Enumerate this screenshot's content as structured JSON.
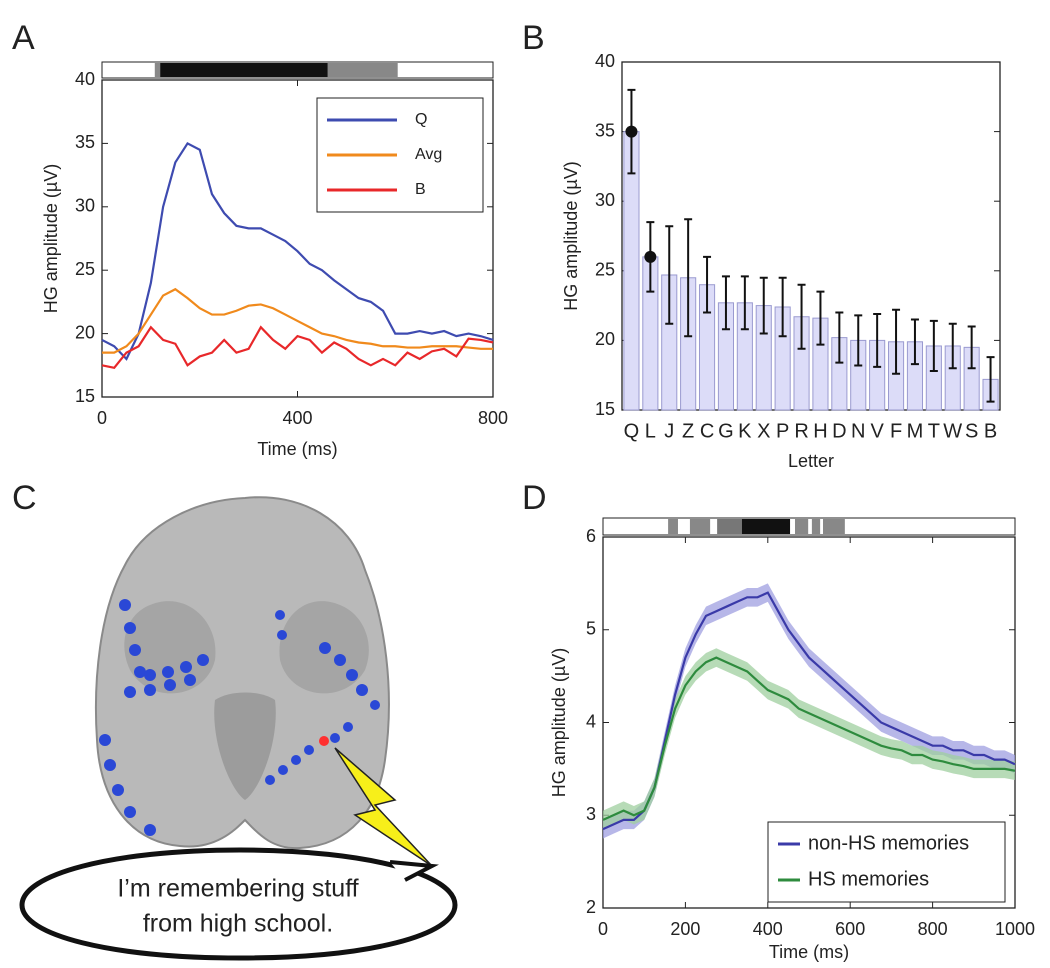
{
  "panel_labels": [
    "A",
    "B",
    "C",
    "D"
  ],
  "illustration": {
    "speech_lines": [
      "I’m remembering stuff",
      "from high school."
    ]
  },
  "chart_data": [
    {
      "type": "line",
      "xlabel": "Time (ms)",
      "ylabel": "HG amplitude (µV)",
      "xlim": [
        0,
        800
      ],
      "ylim": [
        15,
        40
      ],
      "xticks": [
        0,
        400,
        800
      ],
      "yticks": [
        15,
        20,
        25,
        30,
        35,
        40
      ],
      "legend": "upper right",
      "bands": [
        {
          "start": 108,
          "end": 119,
          "color": "#888888"
        },
        {
          "start": 119,
          "end": 462,
          "color": "#111111"
        },
        {
          "start": 462,
          "end": 605,
          "color": "#888888"
        }
      ],
      "x": [
        0,
        25,
        50,
        75,
        100,
        125,
        150,
        175,
        200,
        225,
        250,
        275,
        300,
        325,
        350,
        375,
        400,
        425,
        450,
        475,
        500,
        525,
        550,
        575,
        600,
        625,
        650,
        675,
        700,
        725,
        750,
        775,
        800
      ],
      "series": [
        {
          "name": "Q",
          "color": "#3e4bb0",
          "values": [
            19.5,
            19.0,
            18.0,
            20,
            24,
            30,
            33.5,
            35,
            34.5,
            31,
            29.5,
            28.5,
            28.3,
            28.3,
            27.8,
            27.3,
            26.5,
            25.5,
            25,
            24.2,
            23.5,
            22.8,
            22.5,
            21.8,
            20,
            20,
            20.2,
            20,
            20.2,
            19.8,
            20,
            19.8,
            19.5
          ]
        },
        {
          "name": "Avg",
          "color": "#f08a1c",
          "values": [
            18.5,
            18.5,
            19,
            20,
            21.5,
            23,
            23.5,
            22.8,
            22,
            21.5,
            21.5,
            21.8,
            22.2,
            22.3,
            22,
            21.5,
            21,
            20.5,
            20,
            19.8,
            19.5,
            19.3,
            19.2,
            19,
            19,
            18.9,
            18.9,
            19,
            19,
            19,
            18.9,
            18.8,
            18.8
          ]
        },
        {
          "name": "B",
          "color": "#e8282a",
          "values": [
            17.5,
            17.3,
            18.5,
            19,
            20.5,
            19.5,
            19.2,
            17.5,
            18.2,
            18.5,
            19.5,
            18.5,
            18.8,
            20.5,
            19.5,
            18.8,
            19.8,
            19.5,
            18.5,
            19.3,
            18.8,
            18,
            17.5,
            18,
            17.5,
            18.5,
            18,
            18.6,
            18.8,
            18.2,
            19.6,
            19.5,
            19.3
          ]
        }
      ]
    },
    {
      "type": "bar",
      "xlabel": "Letter",
      "ylabel": "HG amplitude (µV)",
      "ylim": [
        15,
        40
      ],
      "yticks": [
        15,
        20,
        25,
        30,
        35,
        40
      ],
      "color": "#dcdcf8",
      "edge_color": "#9a9ad0",
      "categories": [
        "Q",
        "L",
        "J",
        "Z",
        "C",
        "G",
        "K",
        "X",
        "P",
        "R",
        "H",
        "D",
        "N",
        "V",
        "F",
        "M",
        "T",
        "W",
        "S",
        "B"
      ],
      "values": [
        35,
        26,
        24.7,
        24.5,
        24,
        22.7,
        22.7,
        22.5,
        22.4,
        21.7,
        21.6,
        20.2,
        20,
        20,
        19.9,
        19.9,
        19.6,
        19.6,
        19.5,
        17.2
      ],
      "errors": [
        3,
        2.5,
        3.5,
        4.2,
        2,
        1.9,
        1.9,
        2,
        2.1,
        2.3,
        1.9,
        1.8,
        1.8,
        1.9,
        2.3,
        1.6,
        1.8,
        1.6,
        1.5,
        1.6
      ],
      "marker_indices": [
        0,
        1
      ]
    },
    {
      "type": "line",
      "xlabel": "Time (ms)",
      "ylabel": "HG amplitude (µV)",
      "xlim": [
        0,
        1000
      ],
      "ylim": [
        2,
        6
      ],
      "xticks": [
        0,
        200,
        400,
        600,
        800,
        1000
      ],
      "yticks": [
        2,
        3,
        4,
        5,
        6
      ],
      "legend": "lower right",
      "bands": [
        {
          "start": 158,
          "end": 182,
          "color": "#888888"
        },
        {
          "start": 211,
          "end": 260,
          "color": "#888888"
        },
        {
          "start": 277,
          "end": 337,
          "color": "#777777"
        },
        {
          "start": 337,
          "end": 454,
          "color": "#111111"
        },
        {
          "start": 466,
          "end": 498,
          "color": "#888888"
        },
        {
          "start": 507,
          "end": 527,
          "color": "#888888"
        },
        {
          "start": 534,
          "end": 587,
          "color": "#888888"
        }
      ],
      "x": [
        0,
        25,
        50,
        75,
        100,
        125,
        150,
        175,
        200,
        225,
        250,
        275,
        300,
        325,
        350,
        375,
        400,
        425,
        450,
        475,
        500,
        525,
        550,
        575,
        600,
        625,
        650,
        675,
        700,
        725,
        750,
        775,
        800,
        825,
        850,
        875,
        900,
        925,
        950,
        975,
        1000
      ],
      "series": [
        {
          "name": "non-HS memories",
          "color": "#3a3aa8",
          "band_color": "#9f9fe0",
          "error": 0.1,
          "values": [
            2.85,
            2.9,
            2.95,
            2.95,
            3.05,
            3.3,
            3.8,
            4.3,
            4.7,
            4.95,
            5.15,
            5.2,
            5.25,
            5.3,
            5.35,
            5.35,
            5.4,
            5.2,
            5.0,
            4.85,
            4.7,
            4.6,
            4.5,
            4.4,
            4.3,
            4.2,
            4.1,
            4.0,
            3.95,
            3.9,
            3.85,
            3.8,
            3.75,
            3.75,
            3.7,
            3.7,
            3.65,
            3.65,
            3.6,
            3.6,
            3.55
          ]
        },
        {
          "name": "HS memories",
          "color": "#2e8b3e",
          "band_color": "#9fcf9f",
          "error": 0.1,
          "values": [
            2.95,
            3.0,
            3.05,
            3.0,
            3.05,
            3.3,
            3.75,
            4.15,
            4.4,
            4.55,
            4.65,
            4.7,
            4.65,
            4.6,
            4.55,
            4.45,
            4.35,
            4.3,
            4.25,
            4.15,
            4.1,
            4.05,
            4.0,
            3.95,
            3.9,
            3.85,
            3.8,
            3.75,
            3.72,
            3.7,
            3.65,
            3.65,
            3.6,
            3.58,
            3.55,
            3.53,
            3.5,
            3.5,
            3.5,
            3.5,
            3.48
          ]
        }
      ]
    }
  ]
}
